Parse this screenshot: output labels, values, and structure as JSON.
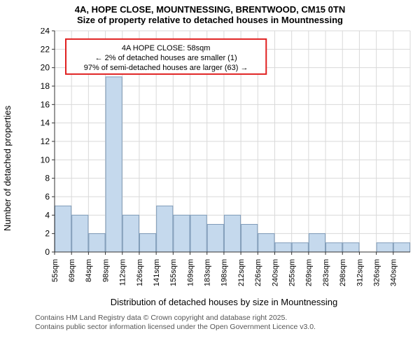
{
  "title_line1": "4A, HOPE CLOSE, MOUNTNESSING, BRENTWOOD, CM15 0TN",
  "title_line2": "Size of property relative to detached houses in Mountnessing",
  "y_axis_label": "Number of detached properties",
  "x_axis_label": "Distribution of detached houses by size in Mountnessing",
  "footnote_line1": "Contains HM Land Registry data © Crown copyright and database right 2025.",
  "footnote_line2": "Contains public sector information licensed under the Open Government Licence v3.0.",
  "chart": {
    "type": "histogram",
    "background_color": "#ffffff",
    "grid_color": "#d9d9d9",
    "axis_color": "#333333",
    "bar_fill": "#c5d9ed",
    "bar_stroke": "#7f9bb8",
    "ylim": [
      0,
      24
    ],
    "ytick_step": 2,
    "xticks_labels": [
      "55sqm",
      "69sqm",
      "84sqm",
      "98sqm",
      "112sqm",
      "126sqm",
      "141sqm",
      "155sqm",
      "169sqm",
      "183sqm",
      "198sqm",
      "212sqm",
      "226sqm",
      "240sqm",
      "255sqm",
      "269sqm",
      "283sqm",
      "298sqm",
      "312sqm",
      "326sqm",
      "340sqm"
    ],
    "bars": [
      5,
      4,
      2,
      19,
      4,
      2,
      5,
      4,
      4,
      3,
      4,
      3,
      2,
      1,
      1,
      2,
      1,
      1,
      0,
      1,
      1
    ],
    "annotation": {
      "box_stroke": "#e02020",
      "box_fill": "#ffffff",
      "lines": [
        "4A HOPE CLOSE: 58sqm",
        "← 2% of detached houses are smaller (1)",
        "97% of semi-detached houses are larger (63) →"
      ],
      "fontsize": 11
    }
  }
}
